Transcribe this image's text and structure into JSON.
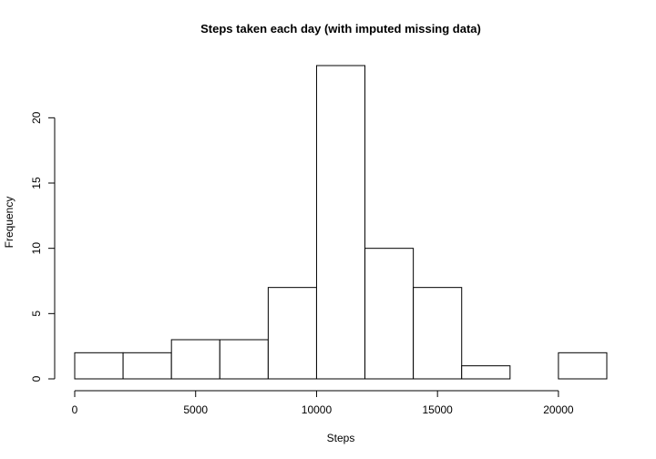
{
  "chart_data": {
    "type": "bar",
    "title": "Steps taken each day (with imputed missing data)",
    "xlabel": "Steps",
    "ylabel": "Frequency",
    "bins": [
      {
        "x0": 0,
        "x1": 2000,
        "count": 2
      },
      {
        "x0": 2000,
        "x1": 4000,
        "count": 2
      },
      {
        "x0": 4000,
        "x1": 6000,
        "count": 3
      },
      {
        "x0": 6000,
        "x1": 8000,
        "count": 3
      },
      {
        "x0": 8000,
        "x1": 10000,
        "count": 7
      },
      {
        "x0": 10000,
        "x1": 12000,
        "count": 24
      },
      {
        "x0": 12000,
        "x1": 14000,
        "count": 10
      },
      {
        "x0": 14000,
        "x1": 16000,
        "count": 7
      },
      {
        "x0": 16000,
        "x1": 18000,
        "count": 1
      },
      {
        "x0": 18000,
        "x1": 20000,
        "count": 0
      },
      {
        "x0": 20000,
        "x1": 22000,
        "count": 2
      }
    ],
    "xlim": [
      0,
      22000
    ],
    "ylim": [
      0,
      24
    ],
    "x_ticks": [
      0,
      5000,
      10000,
      15000,
      20000
    ],
    "y_ticks": [
      0,
      5,
      10,
      15,
      20
    ],
    "grid": false,
    "legend": "none",
    "bar_fill": "#ffffff",
    "bar_stroke": "#000000"
  }
}
